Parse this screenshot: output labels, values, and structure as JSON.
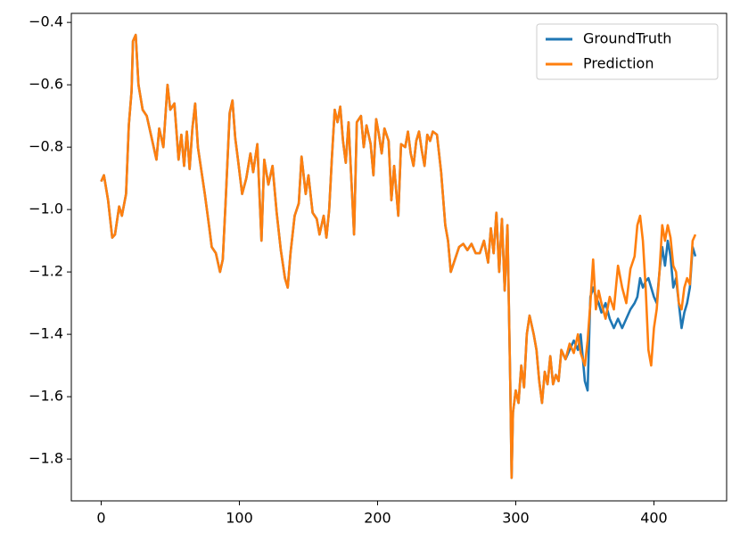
{
  "chart_data": {
    "type": "line",
    "x": [
      0,
      2,
      5,
      8,
      10,
      13,
      15,
      18,
      20,
      22,
      23,
      25,
      27,
      30,
      33,
      36,
      40,
      42,
      45,
      48,
      50,
      53,
      56,
      58,
      60,
      62,
      64,
      66,
      68,
      70,
      75,
      78,
      80,
      83,
      86,
      88,
      90,
      93,
      95,
      97,
      99,
      102,
      105,
      108,
      110,
      113,
      116,
      118,
      121,
      124,
      127,
      130,
      133,
      135,
      137,
      140,
      143,
      145,
      148,
      150,
      153,
      156,
      158,
      161,
      163,
      165,
      167,
      169,
      171,
      173,
      175,
      177,
      179,
      181,
      183,
      185,
      188,
      190,
      192,
      195,
      197,
      199,
      201,
      203,
      205,
      208,
      210,
      212,
      215,
      217,
      220,
      222,
      224,
      226,
      228,
      230,
      232,
      234,
      236,
      238,
      240,
      243,
      246,
      249,
      251,
      253,
      256,
      259,
      262,
      265,
      268,
      271,
      274,
      277,
      280,
      282,
      284,
      286,
      288,
      290,
      292,
      294,
      296,
      297,
      298,
      300,
      302,
      304,
      306,
      308,
      310,
      313,
      315,
      317,
      319,
      321,
      323,
      325,
      327,
      329,
      331,
      333,
      336,
      339,
      342,
      345,
      347,
      350,
      352,
      354,
      356,
      358,
      360,
      362,
      365,
      368,
      371,
      374,
      377,
      380,
      383,
      386,
      388,
      390,
      392,
      394,
      396,
      398,
      400,
      402,
      404,
      406,
      408,
      410,
      412,
      414,
      416,
      418,
      420,
      422,
      424,
      426,
      428,
      430
    ],
    "series": [
      {
        "name": "GroundTruth",
        "color": "#1f77b4",
        "values": [
          -0.91,
          -0.89,
          -0.97,
          -1.09,
          -1.08,
          -0.99,
          -1.02,
          -0.95,
          -0.73,
          -0.62,
          -0.46,
          -0.44,
          -0.6,
          -0.68,
          -0.7,
          -0.76,
          -0.84,
          -0.74,
          -0.8,
          -0.6,
          -0.68,
          -0.66,
          -0.84,
          -0.76,
          -0.86,
          -0.75,
          -0.87,
          -0.74,
          -0.66,
          -0.8,
          -0.95,
          -1.05,
          -1.12,
          -1.14,
          -1.2,
          -1.16,
          -0.98,
          -0.69,
          -0.65,
          -0.77,
          -0.84,
          -0.95,
          -0.9,
          -0.82,
          -0.88,
          -0.79,
          -1.1,
          -0.84,
          -0.92,
          -0.86,
          -1.01,
          -1.13,
          -1.22,
          -1.25,
          -1.14,
          -1.02,
          -0.98,
          -0.83,
          -0.95,
          -0.89,
          -1.01,
          -1.03,
          -1.08,
          -1.02,
          -1.09,
          -1.0,
          -0.83,
          -0.68,
          -0.72,
          -0.67,
          -0.78,
          -0.85,
          -0.72,
          -0.9,
          -1.08,
          -0.72,
          -0.7,
          -0.8,
          -0.73,
          -0.79,
          -0.89,
          -0.71,
          -0.76,
          -0.82,
          -0.74,
          -0.78,
          -0.97,
          -0.86,
          -1.02,
          -0.79,
          -0.8,
          -0.75,
          -0.82,
          -0.86,
          -0.78,
          -0.75,
          -0.81,
          -0.86,
          -0.76,
          -0.78,
          -0.75,
          -0.76,
          -0.88,
          -1.05,
          -1.1,
          -1.2,
          -1.16,
          -1.12,
          -1.11,
          -1.13,
          -1.11,
          -1.14,
          -1.14,
          -1.1,
          -1.17,
          -1.06,
          -1.14,
          -1.01,
          -1.2,
          -1.03,
          -1.26,
          -1.05,
          -1.55,
          -1.86,
          -1.65,
          -1.58,
          -1.62,
          -1.5,
          -1.57,
          -1.4,
          -1.34,
          -1.4,
          -1.45,
          -1.55,
          -1.62,
          -1.52,
          -1.56,
          -1.47,
          -1.56,
          -1.53,
          -1.55,
          -1.45,
          -1.48,
          -1.45,
          -1.42,
          -1.45,
          -1.4,
          -1.55,
          -1.58,
          -1.28,
          -1.25,
          -1.28,
          -1.3,
          -1.33,
          -1.3,
          -1.35,
          -1.38,
          -1.35,
          -1.38,
          -1.35,
          -1.32,
          -1.3,
          -1.28,
          -1.22,
          -1.25,
          -1.23,
          -1.22,
          -1.25,
          -1.28,
          -1.3,
          -1.2,
          -1.12,
          -1.18,
          -1.1,
          -1.15,
          -1.25,
          -1.22,
          -1.3,
          -1.38,
          -1.33,
          -1.3,
          -1.25,
          -1.12,
          -1.15
        ]
      },
      {
        "name": "Prediction",
        "color": "#ff7f0e",
        "values": [
          -0.91,
          -0.89,
          -0.97,
          -1.09,
          -1.08,
          -0.99,
          -1.02,
          -0.95,
          -0.73,
          -0.62,
          -0.46,
          -0.44,
          -0.6,
          -0.68,
          -0.7,
          -0.76,
          -0.84,
          -0.74,
          -0.8,
          -0.6,
          -0.68,
          -0.66,
          -0.84,
          -0.76,
          -0.86,
          -0.75,
          -0.87,
          -0.74,
          -0.66,
          -0.8,
          -0.95,
          -1.05,
          -1.12,
          -1.14,
          -1.2,
          -1.16,
          -0.98,
          -0.69,
          -0.65,
          -0.77,
          -0.84,
          -0.95,
          -0.9,
          -0.82,
          -0.88,
          -0.79,
          -1.1,
          -0.84,
          -0.92,
          -0.86,
          -1.01,
          -1.13,
          -1.22,
          -1.25,
          -1.14,
          -1.02,
          -0.98,
          -0.83,
          -0.95,
          -0.89,
          -1.01,
          -1.03,
          -1.08,
          -1.02,
          -1.09,
          -1.0,
          -0.83,
          -0.68,
          -0.72,
          -0.67,
          -0.78,
          -0.85,
          -0.72,
          -0.9,
          -1.08,
          -0.72,
          -0.7,
          -0.8,
          -0.73,
          -0.79,
          -0.89,
          -0.71,
          -0.76,
          -0.82,
          -0.74,
          -0.78,
          -0.97,
          -0.86,
          -1.02,
          -0.79,
          -0.8,
          -0.75,
          -0.82,
          -0.86,
          -0.78,
          -0.75,
          -0.81,
          -0.86,
          -0.76,
          -0.78,
          -0.75,
          -0.76,
          -0.88,
          -1.05,
          -1.1,
          -1.2,
          -1.16,
          -1.12,
          -1.11,
          -1.13,
          -1.11,
          -1.14,
          -1.14,
          -1.1,
          -1.17,
          -1.06,
          -1.14,
          -1.01,
          -1.2,
          -1.03,
          -1.26,
          -1.05,
          -1.55,
          -1.86,
          -1.65,
          -1.58,
          -1.62,
          -1.5,
          -1.57,
          -1.4,
          -1.34,
          -1.4,
          -1.45,
          -1.55,
          -1.62,
          -1.52,
          -1.56,
          -1.47,
          -1.56,
          -1.53,
          -1.55,
          -1.45,
          -1.48,
          -1.43,
          -1.46,
          -1.4,
          -1.46,
          -1.5,
          -1.42,
          -1.3,
          -1.16,
          -1.32,
          -1.26,
          -1.3,
          -1.35,
          -1.28,
          -1.32,
          -1.18,
          -1.25,
          -1.3,
          -1.19,
          -1.15,
          -1.05,
          -1.02,
          -1.1,
          -1.25,
          -1.45,
          -1.5,
          -1.38,
          -1.32,
          -1.2,
          -1.05,
          -1.1,
          -1.05,
          -1.09,
          -1.18,
          -1.2,
          -1.3,
          -1.32,
          -1.25,
          -1.22,
          -1.24,
          -1.1,
          -1.08
        ]
      }
    ],
    "xlim": [
      -21.6,
      452.6
    ],
    "xticks": [
      0,
      100,
      200,
      300,
      400
    ],
    "ylim": [
      -1.934,
      -0.371
    ],
    "yticks": [
      {
        "value": -1.8,
        "label": "−1.8"
      },
      {
        "value": -1.6,
        "label": "−1.6"
      },
      {
        "value": -1.4,
        "label": "−1.4"
      },
      {
        "value": -1.2,
        "label": "−1.2"
      },
      {
        "value": -1.0,
        "label": "−1.0"
      },
      {
        "value": -0.8,
        "label": "−0.8"
      },
      {
        "value": -0.6,
        "label": "−0.6"
      },
      {
        "value": -0.4,
        "label": "−0.4"
      }
    ],
    "legend": "upper right"
  }
}
